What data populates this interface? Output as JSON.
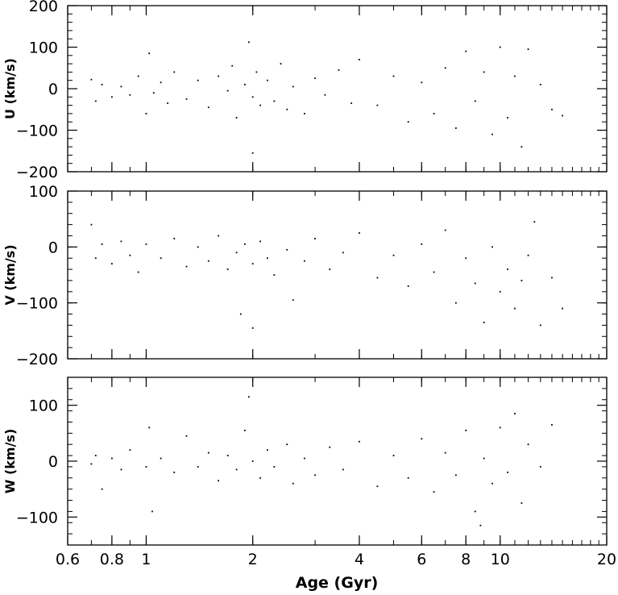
{
  "chart_data": {
    "type": "scatter",
    "x_scale": "log",
    "xlim": [
      0.6,
      20
    ],
    "xticks": [
      0.6,
      0.8,
      1,
      2,
      4,
      6,
      8,
      10,
      20
    ],
    "xtick_labels": [
      "0.6",
      "0.8",
      "1",
      "2",
      "4",
      "6",
      "8",
      "10",
      "20"
    ],
    "xlabel": "Age (Gyr)",
    "grid": false,
    "legend": "none",
    "marker_color": "#000000",
    "panels": [
      {
        "ylabel": "U (km/s)",
        "ylim": [
          -200,
          200
        ],
        "yticks": [
          -200,
          -100,
          0,
          100,
          200
        ],
        "ytick_labels": [
          "−200",
          "−100",
          "0",
          "100",
          "200"
        ],
        "points": [
          [
            0.7,
            22
          ],
          [
            0.72,
            -30
          ],
          [
            0.75,
            10
          ],
          [
            0.8,
            -20
          ],
          [
            0.85,
            5
          ],
          [
            0.9,
            -15
          ],
          [
            0.95,
            30
          ],
          [
            1.0,
            -60
          ],
          [
            1.02,
            85
          ],
          [
            1.05,
            -10
          ],
          [
            1.1,
            15
          ],
          [
            1.15,
            -35
          ],
          [
            1.2,
            40
          ],
          [
            1.3,
            -25
          ],
          [
            1.4,
            20
          ],
          [
            1.5,
            -45
          ],
          [
            1.6,
            30
          ],
          [
            1.7,
            -5
          ],
          [
            1.75,
            55
          ],
          [
            1.8,
            -70
          ],
          [
            1.9,
            10
          ],
          [
            1.95,
            112
          ],
          [
            2.0,
            -20
          ],
          [
            2.0,
            -155
          ],
          [
            2.05,
            40
          ],
          [
            2.1,
            -40
          ],
          [
            2.2,
            20
          ],
          [
            2.3,
            -30
          ],
          [
            2.4,
            60
          ],
          [
            2.5,
            -50
          ],
          [
            2.6,
            5
          ],
          [
            2.8,
            -60
          ],
          [
            3.0,
            25
          ],
          [
            3.2,
            -15
          ],
          [
            3.5,
            45
          ],
          [
            3.8,
            -35
          ],
          [
            4.0,
            70
          ],
          [
            4.5,
            -40
          ],
          [
            5.0,
            30
          ],
          [
            5.5,
            -80
          ],
          [
            6.0,
            15
          ],
          [
            6.5,
            -60
          ],
          [
            7.0,
            50
          ],
          [
            7.5,
            -95
          ],
          [
            8.0,
            90
          ],
          [
            8.5,
            -30
          ],
          [
            9.0,
            40
          ],
          [
            9.5,
            -110
          ],
          [
            10.0,
            100
          ],
          [
            10.5,
            -70
          ],
          [
            11.0,
            30
          ],
          [
            11.5,
            -140
          ],
          [
            12.0,
            95
          ],
          [
            13.0,
            10
          ],
          [
            14.0,
            -50
          ],
          [
            15.0,
            -65
          ]
        ]
      },
      {
        "ylabel": "V (km/s)",
        "ylim": [
          -200,
          100
        ],
        "yticks": [
          -200,
          -100,
          0,
          100
        ],
        "ytick_labels": [
          "−200",
          "−100",
          "0",
          "100"
        ],
        "points": [
          [
            0.7,
            40
          ],
          [
            0.72,
            -20
          ],
          [
            0.75,
            5
          ],
          [
            0.8,
            -30
          ],
          [
            0.85,
            10
          ],
          [
            0.9,
            -15
          ],
          [
            0.95,
            -45
          ],
          [
            1.0,
            5
          ],
          [
            1.1,
            -20
          ],
          [
            1.2,
            15
          ],
          [
            1.3,
            -35
          ],
          [
            1.4,
            0
          ],
          [
            1.5,
            -25
          ],
          [
            1.6,
            20
          ],
          [
            1.7,
            -40
          ],
          [
            1.8,
            -10
          ],
          [
            1.85,
            -120
          ],
          [
            1.9,
            5
          ],
          [
            2.0,
            -30
          ],
          [
            2.0,
            -145
          ],
          [
            2.1,
            10
          ],
          [
            2.2,
            -20
          ],
          [
            2.3,
            -50
          ],
          [
            2.5,
            -5
          ],
          [
            2.6,
            -95
          ],
          [
            2.8,
            -25
          ],
          [
            3.0,
            15
          ],
          [
            3.3,
            -40
          ],
          [
            3.6,
            -10
          ],
          [
            4.0,
            25
          ],
          [
            4.5,
            -55
          ],
          [
            5.0,
            -15
          ],
          [
            5.5,
            -70
          ],
          [
            6.0,
            5
          ],
          [
            6.5,
            -45
          ],
          [
            7.0,
            30
          ],
          [
            7.5,
            -100
          ],
          [
            8.0,
            -20
          ],
          [
            8.5,
            -65
          ],
          [
            9.0,
            -135
          ],
          [
            9.5,
            0
          ],
          [
            10.0,
            -80
          ],
          [
            10.5,
            -40
          ],
          [
            11.0,
            -110
          ],
          [
            11.5,
            -60
          ],
          [
            12.0,
            -15
          ],
          [
            12.5,
            45
          ],
          [
            13.0,
            -140
          ],
          [
            14.0,
            -55
          ],
          [
            15.0,
            -110
          ]
        ]
      },
      {
        "ylabel": "W (km/s)",
        "ylim": [
          -150,
          150
        ],
        "yticks": [
          -100,
          0,
          100
        ],
        "ytick_labels": [
          "−100",
          "0",
          "100"
        ],
        "points": [
          [
            0.7,
            -5
          ],
          [
            0.72,
            10
          ],
          [
            0.75,
            -50
          ],
          [
            0.8,
            5
          ],
          [
            0.85,
            -15
          ],
          [
            0.9,
            20
          ],
          [
            1.0,
            -10
          ],
          [
            1.02,
            60
          ],
          [
            1.04,
            -90
          ],
          [
            1.1,
            5
          ],
          [
            1.2,
            -20
          ],
          [
            1.3,
            45
          ],
          [
            1.4,
            -10
          ],
          [
            1.5,
            15
          ],
          [
            1.6,
            -35
          ],
          [
            1.7,
            10
          ],
          [
            1.8,
            -15
          ],
          [
            1.9,
            55
          ],
          [
            1.95,
            115
          ],
          [
            2.0,
            0
          ],
          [
            2.1,
            -30
          ],
          [
            2.2,
            20
          ],
          [
            2.3,
            -10
          ],
          [
            2.5,
            30
          ],
          [
            2.6,
            -40
          ],
          [
            2.8,
            5
          ],
          [
            3.0,
            -25
          ],
          [
            3.3,
            25
          ],
          [
            3.6,
            -15
          ],
          [
            4.0,
            35
          ],
          [
            4.5,
            -45
          ],
          [
            5.0,
            10
          ],
          [
            5.5,
            -30
          ],
          [
            6.0,
            40
          ],
          [
            6.5,
            -55
          ],
          [
            7.0,
            15
          ],
          [
            7.5,
            -25
          ],
          [
            8.0,
            55
          ],
          [
            8.5,
            -90
          ],
          [
            8.8,
            -115
          ],
          [
            9.0,
            5
          ],
          [
            9.5,
            -40
          ],
          [
            10.0,
            60
          ],
          [
            10.5,
            -20
          ],
          [
            11.0,
            85
          ],
          [
            11.5,
            -75
          ],
          [
            12.0,
            30
          ],
          [
            13.0,
            -10
          ],
          [
            14.0,
            65
          ]
        ]
      }
    ]
  }
}
